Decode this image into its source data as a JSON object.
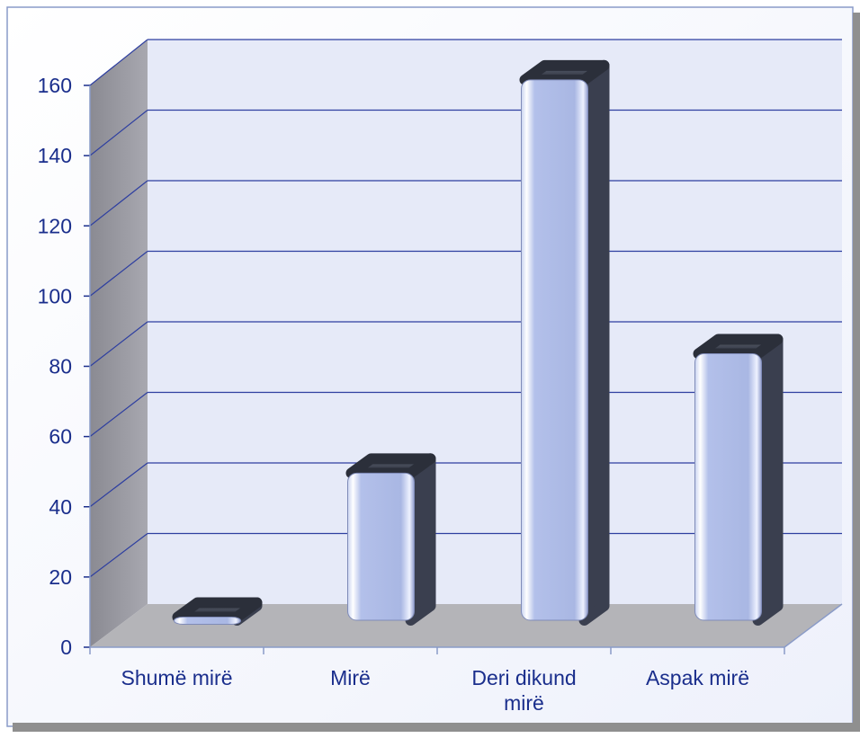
{
  "chart_data": {
    "type": "bar",
    "title": "",
    "xlabel": "",
    "ylabel": "",
    "categories": [
      "Shumë mirë",
      "Mirë",
      "Deri dikund mirë",
      "Aspak mirë"
    ],
    "category_lines": [
      [
        "Shumë mirë"
      ],
      [
        "Mirë"
      ],
      [
        "Deri dikund",
        "mirë"
      ],
      [
        "Aspak mirë"
      ]
    ],
    "values": [
      5,
      46,
      158,
      80
    ],
    "ylim": [
      0,
      160
    ],
    "yticks": [
      "0",
      "20",
      "40",
      "60",
      "80",
      "100",
      "120",
      "140",
      "160"
    ],
    "grid": true,
    "legend": "none",
    "colors": {
      "bar_front": "#aab8e4",
      "bar_side": "#3a3f4f",
      "back_wall": "#e6eaf8",
      "side_wall": "#9c9ca4",
      "floor": "#b4b4b8",
      "gridline": "#2e3fa0",
      "text": "#1a2e8c",
      "frame_border": "#8a9bc8"
    }
  }
}
